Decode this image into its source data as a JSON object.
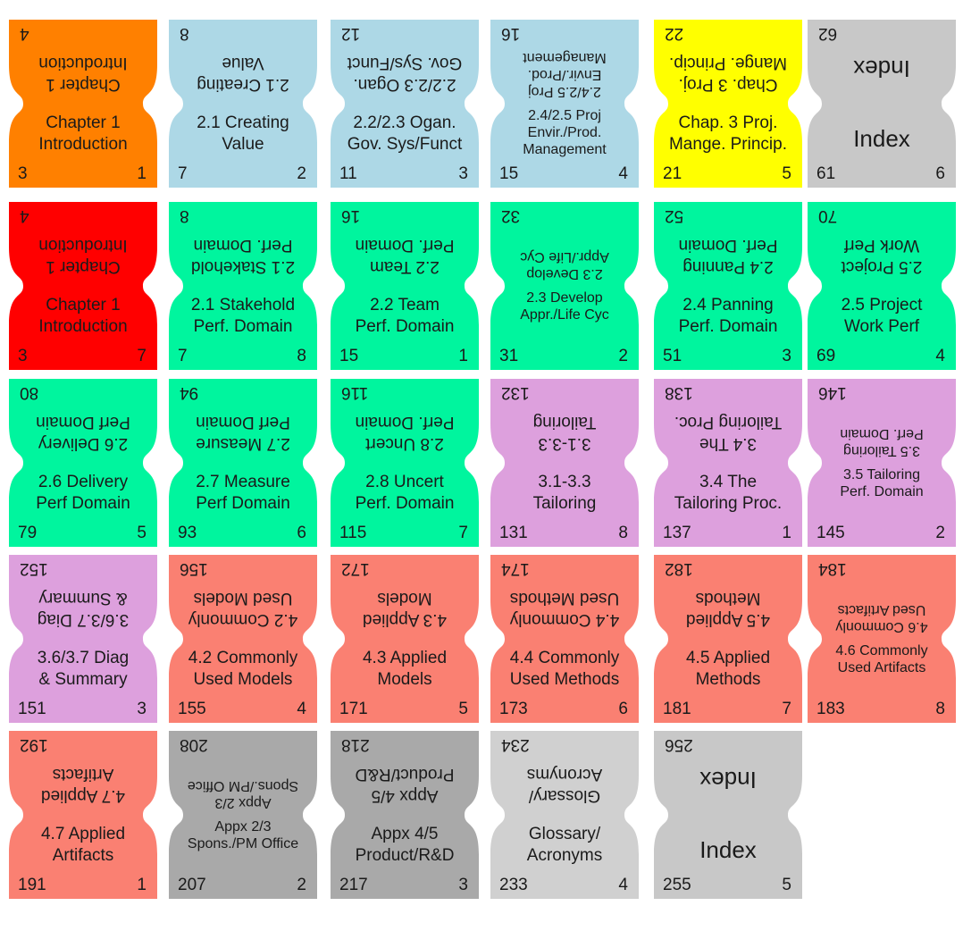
{
  "tabs": [
    {
      "title": "Chapter 1\nIntroduction",
      "page_front": "3",
      "page_back": "4",
      "order": "1",
      "color": "#ff8000",
      "size": ""
    },
    {
      "title": "2.1 Creating\nValue",
      "page_front": "7",
      "page_back": "8",
      "order": "2",
      "color": "#add8e6",
      "size": ""
    },
    {
      "title": "2.2/2.3 Ogan.\nGov. Sys/Funct",
      "page_front": "11",
      "page_back": "12",
      "order": "3",
      "color": "#add8e6",
      "size": ""
    },
    {
      "title": "2.4/2.5 Proj\nEnvir./Prod.\nManagement",
      "page_front": "15",
      "page_back": "16",
      "order": "4",
      "color": "#add8e6",
      "size": "small"
    },
    {
      "title": "Chap. 3 Proj.\nMange. Princip.",
      "page_front": "21",
      "page_back": "22",
      "order": "5",
      "color": "#ffff00",
      "size": ""
    },
    {
      "title": "Index",
      "page_front": "61",
      "page_back": "62",
      "order": "6",
      "color": "#c8c8c8",
      "size": "big"
    },
    {
      "title": "Chapter 1\nIntroduction",
      "page_front": "3",
      "page_back": "4",
      "order": "7",
      "color": "#ff0000",
      "size": ""
    },
    {
      "title": "2.1 Stakehold\nPerf. Domain",
      "page_front": "7",
      "page_back": "8",
      "order": "8",
      "color": "#00f59e",
      "size": ""
    },
    {
      "title": "2.2 Team\nPerf. Domain",
      "page_front": "15",
      "page_back": "16",
      "order": "1",
      "color": "#00f59e",
      "size": ""
    },
    {
      "title": "2.3 Develop\nAppr./Life Cyc",
      "page_front": "31",
      "page_back": "32",
      "order": "2",
      "color": "#00f59e",
      "size": "small"
    },
    {
      "title": "2.4 Panning\nPerf. Domain",
      "page_front": "51",
      "page_back": "52",
      "order": "3",
      "color": "#00f59e",
      "size": ""
    },
    {
      "title": "2.5 Project\nWork Perf",
      "page_front": "69",
      "page_back": "70",
      "order": "4",
      "color": "#00f59e",
      "size": ""
    },
    {
      "title": "2.6 Delivery\nPerf Domain",
      "page_front": "79",
      "page_back": "80",
      "order": "5",
      "color": "#00f59e",
      "size": ""
    },
    {
      "title": "2.7 Measure\nPerf Domain",
      "page_front": "93",
      "page_back": "94",
      "order": "6",
      "color": "#00f59e",
      "size": ""
    },
    {
      "title": "2.8 Uncert\nPerf. Domain",
      "page_front": "115",
      "page_back": "116",
      "order": "7",
      "color": "#00f59e",
      "size": ""
    },
    {
      "title": "3.1-3.3\nTailoring",
      "page_front": "131",
      "page_back": "132",
      "order": "8",
      "color": "#dda0dd",
      "size": ""
    },
    {
      "title": "3.4 The\nTailoring Proc.",
      "page_front": "137",
      "page_back": "138",
      "order": "1",
      "color": "#dda0dd",
      "size": ""
    },
    {
      "title": "3.5 Tailoring\nPerf. Domain",
      "page_front": "145",
      "page_back": "146",
      "order": "2",
      "color": "#dda0dd",
      "size": "small"
    },
    {
      "title": "3.6/3.7 Diag\n& Summary",
      "page_front": "151",
      "page_back": "152",
      "order": "3",
      "color": "#dda0dd",
      "size": ""
    },
    {
      "title": "4.2 Commonly\nUsed Models",
      "page_front": "155",
      "page_back": "156",
      "order": "4",
      "color": "#fa8072",
      "size": ""
    },
    {
      "title": "4.3 Applied\nModels",
      "page_front": "171",
      "page_back": "172",
      "order": "5",
      "color": "#fa8072",
      "size": ""
    },
    {
      "title": "4.4 Commonly\nUsed Methods",
      "page_front": "173",
      "page_back": "174",
      "order": "6",
      "color": "#fa8072",
      "size": ""
    },
    {
      "title": "4.5 Applied\nMethods",
      "page_front": "181",
      "page_back": "182",
      "order": "7",
      "color": "#fa8072",
      "size": ""
    },
    {
      "title": "4.6 Commonly\nUsed Artifacts",
      "page_front": "183",
      "page_back": "184",
      "order": "8",
      "color": "#fa8072",
      "size": "small"
    },
    {
      "title": "4.7 Applied\nArtifacts",
      "page_front": "191",
      "page_back": "192",
      "order": "1",
      "color": "#fa8072",
      "size": ""
    },
    {
      "title": "Appx 2/3\nSpons./PM Office",
      "page_front": "207",
      "page_back": "208",
      "order": "2",
      "color": "#a9a9a9",
      "size": "small"
    },
    {
      "title": "Appx 4/5\nProduct/R&D",
      "page_front": "217",
      "page_back": "218",
      "order": "3",
      "color": "#a9a9a9",
      "size": ""
    },
    {
      "title": "Glossary/\nAcronyms",
      "page_front": "233",
      "page_back": "234",
      "order": "4",
      "color": "#d0d0d0",
      "size": ""
    },
    {
      "title": "Index",
      "page_front": "255",
      "page_back": "256",
      "order": "5",
      "color": "#c8c8c8",
      "size": "big"
    }
  ]
}
